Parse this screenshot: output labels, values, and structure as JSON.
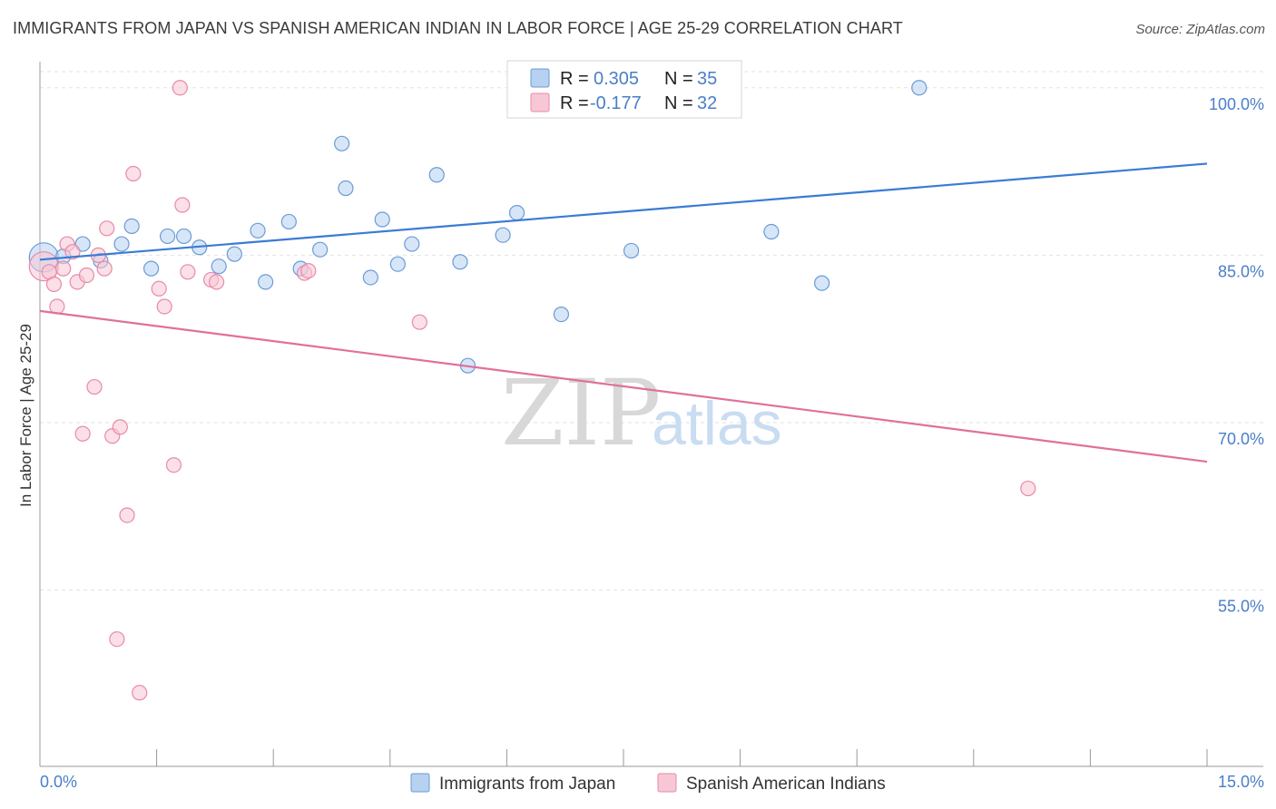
{
  "header": {
    "title": "IMMIGRANTS FROM JAPAN VS SPANISH AMERICAN INDIAN IN LABOR FORCE | AGE 25-29 CORRELATION CHART",
    "source": "Source: ZipAtlas.com"
  },
  "watermark": {
    "zip": "ZIP",
    "atlas": "atlas"
  },
  "legend": {
    "rows": [
      {
        "r_label": "R = ",
        "r_value": "0.305",
        "n_label": "N = ",
        "n_value": "35"
      },
      {
        "r_label": "R = ",
        "r_value": "-0.177",
        "n_label": "N = ",
        "n_value": "32"
      }
    ]
  },
  "colors": {
    "series1_fill": "#b7d1f1",
    "series1_stroke": "#6a9bd8",
    "series1_line": "#3a7bd5",
    "series2_fill": "#f8c7d6",
    "series2_stroke": "#e88aa8",
    "series2_line": "#e0709a",
    "tick_text": "#4a7fc7",
    "grid": "#e2e2e2"
  },
  "chart_data": {
    "type": "scatter",
    "title": "IMMIGRANTS FROM JAPAN VS SPANISH AMERICAN INDIAN IN LABOR FORCE | AGE 25-29 CORRELATION CHART",
    "xlabel": "",
    "ylabel": "In Labor Force | Age 25-29",
    "xlim": [
      0,
      15
    ],
    "ylim": [
      39.2,
      102.5
    ],
    "x_tick_labels": [
      "0.0%",
      "15.0%"
    ],
    "y_ticks": [
      55,
      70,
      85,
      100
    ],
    "y_tick_labels": [
      "55.0%",
      "70.0%",
      "85.0%",
      "100.0%"
    ],
    "grid": true,
    "legend_position": "bottom-center",
    "series": [
      {
        "name": "Immigrants from Japan",
        "trend": {
          "x": [
            0,
            15
          ],
          "y": [
            84.6,
            93.2
          ]
        },
        "points": [
          {
            "x": 0.05,
            "y": 84.8,
            "big": true
          },
          {
            "x": 0.3,
            "y": 84.9
          },
          {
            "x": 0.55,
            "y": 86.0
          },
          {
            "x": 0.78,
            "y": 84.5
          },
          {
            "x": 1.18,
            "y": 87.6
          },
          {
            "x": 1.05,
            "y": 86.0
          },
          {
            "x": 1.43,
            "y": 83.8
          },
          {
            "x": 1.64,
            "y": 86.7
          },
          {
            "x": 1.85,
            "y": 86.7
          },
          {
            "x": 2.05,
            "y": 85.7
          },
          {
            "x": 2.3,
            "y": 84.0
          },
          {
            "x": 2.5,
            "y": 85.1
          },
          {
            "x": 2.8,
            "y": 87.2
          },
          {
            "x": 2.9,
            "y": 82.6
          },
          {
            "x": 3.2,
            "y": 88.0
          },
          {
            "x": 3.35,
            "y": 83.8
          },
          {
            "x": 3.6,
            "y": 85.5
          },
          {
            "x": 3.88,
            "y": 95.0
          },
          {
            "x": 3.93,
            "y": 91.0
          },
          {
            "x": 4.25,
            "y": 83.0
          },
          {
            "x": 4.4,
            "y": 88.2
          },
          {
            "x": 4.6,
            "y": 84.2
          },
          {
            "x": 4.78,
            "y": 86.0
          },
          {
            "x": 5.1,
            "y": 92.2
          },
          {
            "x": 5.4,
            "y": 84.4
          },
          {
            "x": 5.5,
            "y": 75.1
          },
          {
            "x": 5.95,
            "y": 86.8
          },
          {
            "x": 6.13,
            "y": 88.8
          },
          {
            "x": 6.25,
            "y": 100.0
          },
          {
            "x": 6.7,
            "y": 79.7
          },
          {
            "x": 7.0,
            "y": 100.0
          },
          {
            "x": 7.6,
            "y": 85.4
          },
          {
            "x": 9.4,
            "y": 87.1
          },
          {
            "x": 10.05,
            "y": 82.5
          },
          {
            "x": 11.3,
            "y": 100.0
          }
        ]
      },
      {
        "name": "Spanish American Indians",
        "trend": {
          "x": [
            0,
            15
          ],
          "y": [
            80.0,
            66.5
          ]
        },
        "points": [
          {
            "x": 0.05,
            "y": 84.0,
            "big": true
          },
          {
            "x": 0.12,
            "y": 83.5
          },
          {
            "x": 0.18,
            "y": 82.4
          },
          {
            "x": 0.22,
            "y": 80.4
          },
          {
            "x": 0.3,
            "y": 83.8
          },
          {
            "x": 0.35,
            "y": 86.0
          },
          {
            "x": 0.42,
            "y": 85.3
          },
          {
            "x": 0.48,
            "y": 82.6
          },
          {
            "x": 0.55,
            "y": 69.0
          },
          {
            "x": 0.6,
            "y": 83.2
          },
          {
            "x": 0.7,
            "y": 73.2
          },
          {
            "x": 0.75,
            "y": 85.0
          },
          {
            "x": 0.83,
            "y": 83.8
          },
          {
            "x": 0.86,
            "y": 87.4
          },
          {
            "x": 0.93,
            "y": 68.8
          },
          {
            "x": 1.03,
            "y": 69.6
          },
          {
            "x": 1.12,
            "y": 61.7
          },
          {
            "x": 1.2,
            "y": 92.3
          },
          {
            "x": 1.28,
            "y": 45.8
          },
          {
            "x": 0.99,
            "y": 50.6
          },
          {
            "x": 1.53,
            "y": 82.0
          },
          {
            "x": 1.6,
            "y": 80.4
          },
          {
            "x": 1.72,
            "y": 66.2
          },
          {
            "x": 1.8,
            "y": 100.0
          },
          {
            "x": 1.83,
            "y": 89.5
          },
          {
            "x": 1.9,
            "y": 83.5
          },
          {
            "x": 2.2,
            "y": 82.8
          },
          {
            "x": 2.27,
            "y": 82.6
          },
          {
            "x": 3.4,
            "y": 83.4
          },
          {
            "x": 3.45,
            "y": 83.6
          },
          {
            "x": 4.88,
            "y": 79.0
          },
          {
            "x": 12.7,
            "y": 64.1
          }
        ]
      }
    ]
  }
}
